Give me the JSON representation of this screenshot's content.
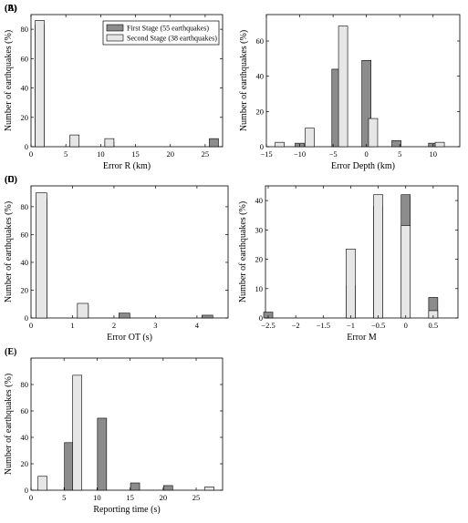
{
  "legend": {
    "position": "top-right of panel A",
    "entries": [
      {
        "name": "First Stage (55 earthquakes)",
        "color": "#8c8c8c"
      },
      {
        "name": "Second Stage (38 earthquakes)",
        "color": "#e6e6e6"
      }
    ]
  },
  "chart_data": [
    {
      "type": "bar",
      "panel": "(A)",
      "xlabel": "Error R (km)",
      "ylabel": "Number of earthquakes (%)",
      "xlim": [
        0,
        27.5
      ],
      "ylim": [
        0,
        90
      ],
      "xticks": [
        0,
        5,
        10,
        15,
        20,
        25
      ],
      "yticks": [
        0,
        20,
        40,
        60,
        80
      ],
      "grid": false,
      "series": [
        {
          "name": "First Stage (55 earthquakes)",
          "x": [
            1.25,
            6.25,
            11.25,
            26.25
          ],
          "values": [
            83,
            7,
            3.5,
            5.5
          ]
        },
        {
          "name": "Second Stage (38 earthquakes)",
          "x": [
            1.25,
            6.25,
            11.25
          ],
          "values": [
            86,
            8,
            5.5
          ]
        }
      ]
    },
    {
      "type": "bar",
      "panel": "(B)",
      "xlabel": "Error Depth (km)",
      "ylabel": "Number of earthquakes (%)",
      "xlim": [
        -15,
        14
      ],
      "ylim": [
        0,
        75
      ],
      "xticks": [
        -15,
        -10,
        -5,
        0,
        5,
        10
      ],
      "yticks": [
        0,
        20,
        40,
        60
      ],
      "grid": false,
      "series": [
        {
          "name": "First Stage (55 earthquakes)",
          "x": [
            -10,
            -4.5,
            0,
            4.5,
            10
          ],
          "values": [
            2,
            44,
            49,
            3.5,
            2
          ]
        },
        {
          "name": "Second Stage (38 earthquakes)",
          "x": [
            -13,
            -8.5,
            -3.5,
            1,
            11
          ],
          "values": [
            2.5,
            10.5,
            68.5,
            16,
            2.5
          ]
        }
      ]
    },
    {
      "type": "bar",
      "panel": "(C)",
      "xlabel": "Error OT (s)",
      "ylabel": "Number of earthquakes (%)",
      "xlim": [
        0,
        4.75
      ],
      "ylim": [
        0,
        95
      ],
      "xticks": [
        0,
        1,
        2,
        3,
        4
      ],
      "yticks": [
        0,
        20,
        40,
        60,
        80
      ],
      "grid": false,
      "series": [
        {
          "name": "First Stage (55 earthquakes)",
          "x": [
            0.25,
            1.25,
            2.25,
            4.25
          ],
          "values": [
            86,
            9,
            3.5,
            2
          ]
        },
        {
          "name": "Second Stage (38 earthquakes)",
          "x": [
            0.25,
            1.25
          ],
          "values": [
            90,
            10.5
          ]
        }
      ]
    },
    {
      "type": "bar",
      "panel": "(D)",
      "xlabel": "Error M",
      "ylabel": "Number of earthquakes (%)",
      "xlim": [
        -2.55,
        0.95
      ],
      "ylim": [
        0,
        45
      ],
      "xticks": [
        -2.5,
        -2,
        -1.5,
        -1,
        -0.5,
        0,
        0.5
      ],
      "yticks": [
        0,
        10,
        20,
        30,
        40
      ],
      "grid": false,
      "series": [
        {
          "name": "First Stage (55 earthquakes)",
          "x": [
            -2.5,
            -1,
            -0.5,
            0,
            0.5
          ],
          "values": [
            2,
            11,
            38,
            42,
            7
          ]
        },
        {
          "name": "Second Stage (38 earthquakes)",
          "x": [
            -2.5,
            -1,
            -0.5,
            0,
            0.5
          ],
          "values": [
            0,
            23.5,
            42,
            31.5,
            2.5
          ]
        }
      ]
    },
    {
      "type": "bar",
      "panel": "(E)",
      "xlabel": "Reporting time (s)",
      "ylabel": "Number of earthquakes (%)",
      "xlim": [
        0,
        29
      ],
      "ylim": [
        0,
        100
      ],
      "xticks": [
        0,
        5,
        10,
        15,
        20,
        25
      ],
      "yticks": [
        0,
        20,
        40,
        60,
        80
      ],
      "grid": false,
      "series": [
        {
          "name": "First Stage (55 earthquakes)",
          "x": [
            5.75,
            10.75,
            15.75,
            20.75
          ],
          "values": [
            36,
            54.5,
            5.5,
            3.5
          ]
        },
        {
          "name": "Second Stage (38 earthquakes)",
          "x": [
            1.75,
            7,
            27
          ],
          "values": [
            10.5,
            87,
            2.5
          ]
        }
      ]
    }
  ]
}
